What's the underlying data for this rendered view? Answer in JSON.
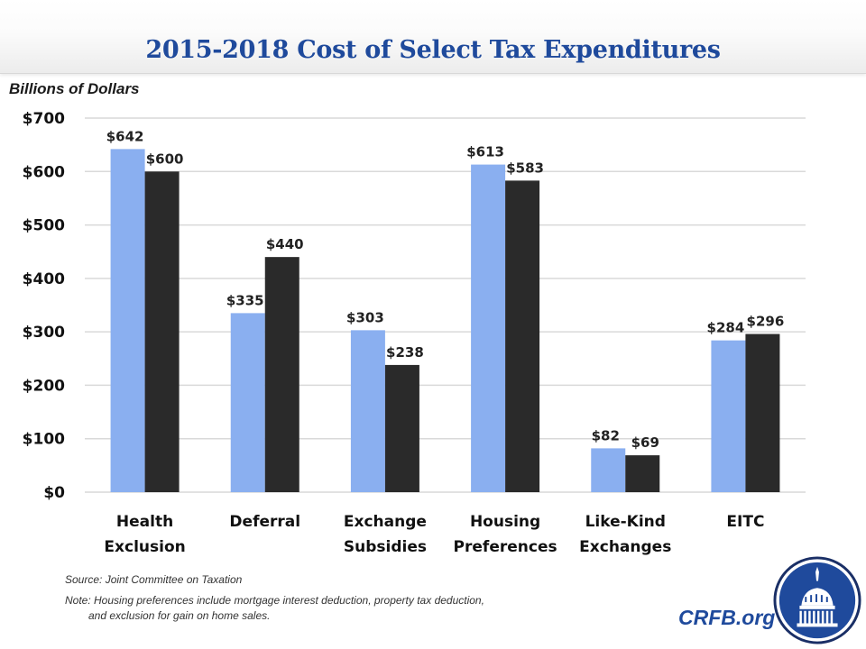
{
  "header": {
    "title": "2015-2018 Cost of Select Tax Expenditures"
  },
  "colors": {
    "title": "#1f4a9c",
    "series_light": "#8aaff0",
    "series_dark": "#2a2a2a",
    "gridline": "#d9d9d9",
    "brand": "#1f4a9c"
  },
  "chart_data": {
    "type": "bar",
    "title": "2015-2018 Cost of Select Tax Expenditures",
    "xlabel": "",
    "ylabel": "Billions of Dollars",
    "ylim": [
      0,
      700
    ],
    "yticks": [
      0,
      100,
      200,
      300,
      400,
      500,
      600,
      700
    ],
    "ytick_labels": [
      "$0",
      "$100",
      "$200",
      "$300",
      "$400",
      "$500",
      "$600",
      "$700"
    ],
    "grid": true,
    "legend": "none",
    "categories": [
      [
        "Health",
        "Exclusion"
      ],
      [
        "Deferral"
      ],
      [
        "Exchange",
        "Subsidies"
      ],
      [
        "Housing",
        "Preferences"
      ],
      [
        "Like-Kind",
        "Exchanges"
      ],
      [
        "EITC"
      ]
    ],
    "series": [
      {
        "name": "Series 1 (light blue)",
        "color": "#8aaff0",
        "values": [
          642,
          335,
          303,
          613,
          82,
          284
        ],
        "labels": [
          "$642",
          "$335",
          "$303",
          "$613",
          "$82",
          "$284"
        ]
      },
      {
        "name": "Series 2 (black)",
        "color": "#2a2a2a",
        "values": [
          600,
          440,
          238,
          583,
          69,
          296
        ],
        "labels": [
          "$600",
          "$440",
          "$238",
          "$583",
          "$69",
          "$296"
        ]
      }
    ]
  },
  "footer": {
    "source": "Source: Joint Committee on Taxation",
    "note_line1": "Note: Housing preferences include mortgage  interest deduction, property  tax deduction,",
    "note_line2": "and exclusion for gain on home sales.",
    "brand": "CRFB.org",
    "logo_icon": "capitol-dome-icon"
  }
}
